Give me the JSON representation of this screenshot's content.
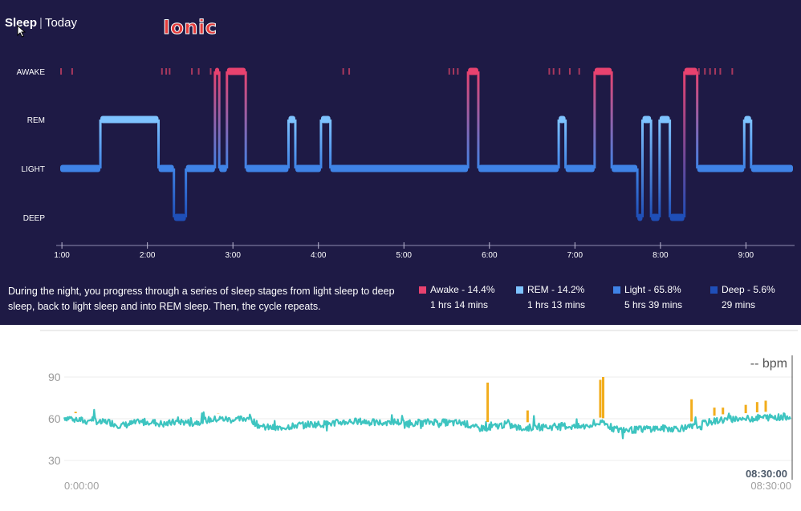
{
  "header": {
    "title": "Sleep",
    "range": "Today"
  },
  "watermark": "Ionic",
  "description": "During the night, you progress through a series of sleep stages from light sleep to deep sleep, back to light sleep and into REM sleep. Then, the cycle repeats.",
  "legend": [
    {
      "label": "Awake - 14.4%",
      "duration": "1 hrs 14 mins",
      "color": "#e8426f"
    },
    {
      "label": "REM - 14.2%",
      "duration": "1 hrs 13 mins",
      "color": "#7ec3ff"
    },
    {
      "label": "Light - 65.8%",
      "duration": "5 hrs 39 mins",
      "color": "#3f83e6"
    },
    {
      "label": "Deep - 5.6%",
      "duration": "29 mins",
      "color": "#1f4fb8"
    }
  ],
  "chart_data": [
    {
      "type": "line",
      "name": "sleep-stages",
      "stages": [
        "AWAKE",
        "REM",
        "LIGHT",
        "DEEP"
      ],
      "x_ticks": [
        "1:00",
        "2:00",
        "3:00",
        "4:00",
        "5:00",
        "6:00",
        "7:00",
        "8:00",
        "9:00"
      ],
      "x_range_hours": [
        0.98,
        9.55
      ],
      "colors": {
        "AWAKE": "#e8426f",
        "REM": "#7ec3ff",
        "LIGHT": "#3f83e6",
        "DEEP": "#1f4fb8"
      },
      "segments": [
        {
          "start": 0.98,
          "end": 1.45,
          "stage": "LIGHT"
        },
        {
          "start": 1.45,
          "end": 2.13,
          "stage": "REM"
        },
        {
          "start": 2.13,
          "end": 2.31,
          "stage": "LIGHT"
        },
        {
          "start": 2.31,
          "end": 2.45,
          "stage": "DEEP"
        },
        {
          "start": 2.45,
          "end": 2.79,
          "stage": "LIGHT"
        },
        {
          "start": 2.79,
          "end": 2.84,
          "stage": "AWAKE"
        },
        {
          "start": 2.84,
          "end": 2.93,
          "stage": "LIGHT"
        },
        {
          "start": 2.93,
          "end": 3.15,
          "stage": "AWAKE"
        },
        {
          "start": 3.15,
          "end": 3.65,
          "stage": "LIGHT"
        },
        {
          "start": 3.65,
          "end": 3.73,
          "stage": "REM"
        },
        {
          "start": 3.73,
          "end": 4.03,
          "stage": "LIGHT"
        },
        {
          "start": 4.03,
          "end": 4.14,
          "stage": "REM"
        },
        {
          "start": 4.14,
          "end": 5.75,
          "stage": "LIGHT"
        },
        {
          "start": 5.75,
          "end": 5.87,
          "stage": "AWAKE"
        },
        {
          "start": 5.87,
          "end": 6.81,
          "stage": "LIGHT"
        },
        {
          "start": 6.81,
          "end": 6.89,
          "stage": "REM"
        },
        {
          "start": 6.89,
          "end": 7.23,
          "stage": "LIGHT"
        },
        {
          "start": 7.23,
          "end": 7.43,
          "stage": "AWAKE"
        },
        {
          "start": 7.43,
          "end": 7.73,
          "stage": "LIGHT"
        },
        {
          "start": 7.73,
          "end": 7.79,
          "stage": "DEEP"
        },
        {
          "start": 7.79,
          "end": 7.89,
          "stage": "REM"
        },
        {
          "start": 7.89,
          "end": 7.99,
          "stage": "DEEP"
        },
        {
          "start": 7.99,
          "end": 8.11,
          "stage": "REM"
        },
        {
          "start": 8.11,
          "end": 8.28,
          "stage": "DEEP"
        },
        {
          "start": 8.28,
          "end": 8.43,
          "stage": "AWAKE"
        },
        {
          "start": 8.43,
          "end": 8.98,
          "stage": "LIGHT"
        },
        {
          "start": 8.98,
          "end": 9.06,
          "stage": "REM"
        },
        {
          "start": 9.06,
          "end": 9.55,
          "stage": "LIGHT"
        }
      ],
      "awake_ticks": [
        0.99,
        1.12,
        2.17,
        2.22,
        2.26,
        2.52,
        2.6,
        2.74,
        4.29,
        4.36,
        5.53,
        5.58,
        5.63,
        6.7,
        6.75,
        6.82,
        6.94,
        7.05,
        8.45,
        8.52,
        8.58,
        8.64,
        8.7,
        8.84
      ]
    },
    {
      "type": "line",
      "name": "heart-rate",
      "y_ticks": [
        30,
        60,
        90
      ],
      "y_range": [
        20,
        100
      ],
      "x_start_label": "0:00:00",
      "x_end_label": "08:30:00",
      "cursor_label": "08:30:00",
      "readout": "-- bpm",
      "x_range_minutes": [
        0,
        510
      ],
      "series_color": "#3dc4c0",
      "high_color": "#f2ad1c",
      "points": [
        [
          0,
          61
        ],
        [
          8,
          60
        ],
        [
          15,
          58
        ],
        [
          20,
          60
        ],
        [
          25,
          57
        ],
        [
          30,
          58
        ],
        [
          40,
          55
        ],
        [
          50,
          57
        ],
        [
          60,
          58
        ],
        [
          70,
          56
        ],
        [
          80,
          58
        ],
        [
          90,
          57
        ],
        [
          100,
          59
        ],
        [
          110,
          60
        ],
        [
          120,
          59
        ],
        [
          130,
          61
        ],
        [
          135,
          56
        ],
        [
          140,
          54
        ],
        [
          150,
          53
        ],
        [
          160,
          55
        ],
        [
          170,
          56
        ],
        [
          180,
          56
        ],
        [
          190,
          57
        ],
        [
          200,
          58
        ],
        [
          210,
          58
        ],
        [
          220,
          57
        ],
        [
          230,
          58
        ],
        [
          240,
          57
        ],
        [
          250,
          57
        ],
        [
          260,
          58
        ],
        [
          270,
          57
        ],
        [
          280,
          57
        ],
        [
          285,
          55
        ],
        [
          290,
          53
        ],
        [
          300,
          54
        ],
        [
          310,
          56
        ],
        [
          320,
          53
        ],
        [
          330,
          54
        ],
        [
          340,
          54
        ],
        [
          350,
          55
        ],
        [
          360,
          54
        ],
        [
          370,
          55
        ],
        [
          375,
          57
        ],
        [
          380,
          56
        ],
        [
          385,
          53
        ],
        [
          390,
          52
        ],
        [
          400,
          52
        ],
        [
          410,
          53
        ],
        [
          420,
          53
        ],
        [
          430,
          53
        ],
        [
          440,
          54
        ],
        [
          450,
          57
        ],
        [
          460,
          59
        ],
        [
          470,
          60
        ],
        [
          480,
          60
        ],
        [
          490,
          61
        ],
        [
          500,
          61
        ],
        [
          510,
          62
        ]
      ],
      "spikes": [
        {
          "minute": 8,
          "value": 65
        },
        {
          "minute": 108,
          "value": 64
        },
        {
          "minute": 297,
          "value": 86
        },
        {
          "minute": 325,
          "value": 66
        },
        {
          "minute": 376,
          "value": 88
        },
        {
          "minute": 378,
          "value": 90
        },
        {
          "minute": 440,
          "value": 74
        },
        {
          "minute": 456,
          "value": 68
        },
        {
          "minute": 462,
          "value": 68
        },
        {
          "minute": 478,
          "value": 70
        },
        {
          "minute": 486,
          "value": 72
        },
        {
          "minute": 492,
          "value": 73
        }
      ]
    }
  ]
}
